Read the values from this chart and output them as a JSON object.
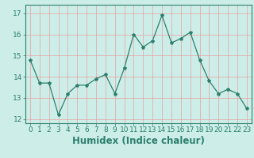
{
  "x": [
    0,
    1,
    2,
    3,
    4,
    5,
    6,
    7,
    8,
    9,
    10,
    11,
    12,
    13,
    14,
    15,
    16,
    17,
    18,
    19,
    20,
    21,
    22,
    23
  ],
  "y": [
    14.8,
    13.7,
    13.7,
    12.2,
    13.2,
    13.6,
    13.6,
    13.9,
    14.1,
    13.2,
    14.4,
    16.0,
    15.4,
    15.7,
    16.9,
    15.6,
    15.8,
    16.1,
    14.8,
    13.8,
    13.2,
    13.4,
    13.2,
    12.5
  ],
  "line_color": "#2d7f6e",
  "marker": "*",
  "marker_size": 3,
  "bg_color": "#cdeee8",
  "grid_color": "#e8a0a0",
  "xlabel": "Humidex (Indice chaleur)",
  "ylim": [
    11.8,
    17.4
  ],
  "xlim": [
    -0.5,
    23.5
  ],
  "yticks": [
    12,
    13,
    14,
    15,
    16,
    17
  ],
  "ytick_labels": [
    "12",
    "13",
    "14",
    "15",
    "16",
    "17"
  ],
  "xticks": [
    0,
    1,
    2,
    3,
    4,
    5,
    6,
    7,
    8,
    9,
    10,
    11,
    12,
    13,
    14,
    15,
    16,
    17,
    18,
    19,
    20,
    21,
    22,
    23
  ],
  "axis_color": "#2d7f6e",
  "tick_font_size": 6.5,
  "xlabel_font_size": 8.5
}
